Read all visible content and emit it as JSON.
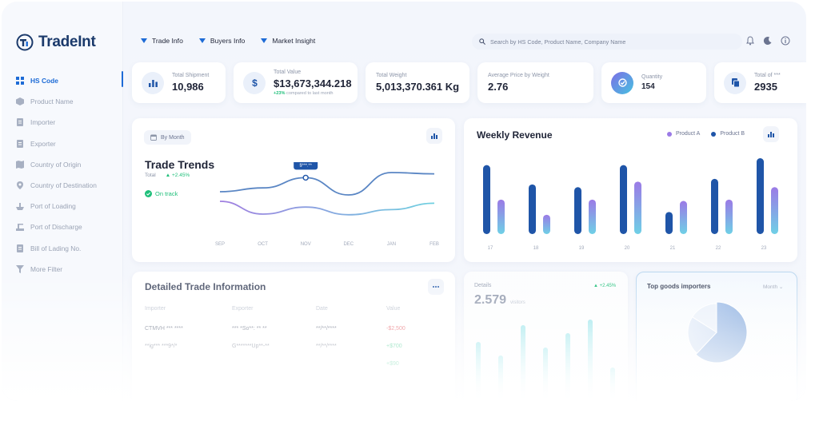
{
  "brand": {
    "name": "TradeInt"
  },
  "sidebar": {
    "items": [
      {
        "label": "HS Code",
        "icon": "grid-icon",
        "active": true
      },
      {
        "label": "Product Name",
        "icon": "cube-icon"
      },
      {
        "label": "Importer",
        "icon": "import-icon"
      },
      {
        "label": "Exporter",
        "icon": "export-icon"
      },
      {
        "label": "Country of Origin",
        "icon": "map-icon"
      },
      {
        "label": "Country of Destination",
        "icon": "pin-icon"
      },
      {
        "label": "Port of Loading",
        "icon": "ship-icon"
      },
      {
        "label": "Port of Discharge",
        "icon": "dock-icon"
      },
      {
        "label": "Bill of Lading No.",
        "icon": "document-icon"
      },
      {
        "label": "More Filter",
        "icon": "filter-icon"
      }
    ]
  },
  "topnav": {
    "items": [
      "Trade Info",
      "Buyers Info",
      "Market Insight"
    ]
  },
  "search": {
    "placeholder": "Search by HS Code, Product Name, Company Name"
  },
  "stats": [
    {
      "label": "Total Shipment",
      "value": "10,986",
      "icon": "bar-chart-icon"
    },
    {
      "label": "Total Value",
      "value": "$13,673,344.218",
      "change": "+23%",
      "change_note": "compared to last month",
      "icon": "dollar-icon"
    },
    {
      "label": "Total Weight",
      "value": "5,013,370.361 Kg"
    },
    {
      "label": "Average Price by Weight",
      "value": "2.76"
    },
    {
      "label": "Quantity",
      "value": "154",
      "icon": "quantity-icon"
    },
    {
      "label": "Total of ***",
      "value": "2935",
      "icon": "copy-icon"
    }
  ],
  "trends": {
    "filter": "By Month",
    "title": "Trade Trends",
    "total_label": "Total",
    "total_change": "+2.45%",
    "status": "On track",
    "tooltip": "$***.**",
    "x_labels": [
      "SEP",
      "OCT",
      "NOV",
      "DEC",
      "JAN",
      "FEB"
    ],
    "colors": {
      "series_a": "#5a86c4",
      "series_b": "#a07ee0",
      "series_c": "#6fd0e0"
    }
  },
  "weekly": {
    "title": "Weekly Revenue",
    "legend": [
      "Product A",
      "Product B"
    ],
    "colors": {
      "product_a": "#1f55a8",
      "product_b": "#9b7ae6"
    }
  },
  "chart_data": [
    {
      "type": "bar",
      "title": "Weekly Revenue",
      "categories": [
        "17",
        "18",
        "19",
        "20",
        "21",
        "22",
        "23"
      ],
      "series": [
        {
          "name": "Product B",
          "values": [
            100,
            72,
            68,
            100,
            32,
            80,
            110
          ]
        },
        {
          "name": "Product A",
          "values": [
            50,
            28,
            50,
            76,
            48,
            50,
            68
          ]
        }
      ],
      "ylim": [
        0,
        110
      ],
      "grid": false,
      "legend": "top-right"
    },
    {
      "type": "line",
      "title": "Trade Trends",
      "x": [
        "SEP",
        "OCT",
        "NOV",
        "DEC",
        "JAN",
        "FEB"
      ],
      "series": [
        {
          "values": [
            60,
            66,
            82,
            55,
            90,
            88
          ]
        },
        {
          "values": [
            45,
            25,
            36,
            24,
            32,
            42
          ]
        }
      ],
      "ylim": [
        0,
        100
      ]
    },
    {
      "type": "pie",
      "title": "Top goods importers",
      "values": [
        62,
        22,
        16
      ]
    }
  ],
  "table": {
    "title": "Detailed Trade Information",
    "headers": [
      "Importer",
      "Exporter",
      "Date",
      "Value"
    ],
    "rows": [
      [
        "CTMVH *** ****",
        "*** *So**: ** **",
        "**/**/****",
        "-$2,500"
      ],
      [
        "**ig*** ***9*/*",
        "G*******Up**-**",
        "**/**/****",
        "+$700"
      ],
      [
        "",
        "",
        "",
        "+$90"
      ]
    ]
  },
  "details": {
    "title": "Details",
    "change": "+2.45%",
    "value": "2.579",
    "unit": "visitors"
  },
  "importers": {
    "title": "Top goods importers",
    "filter": "Month"
  }
}
